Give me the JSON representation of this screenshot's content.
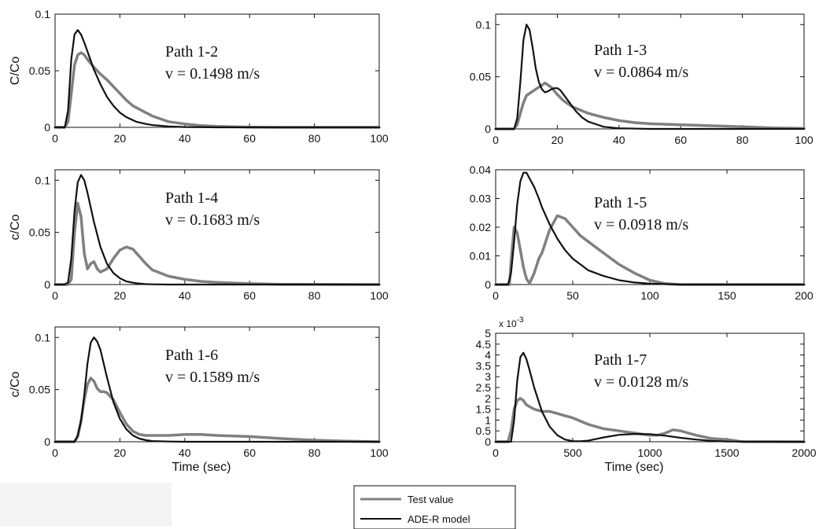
{
  "legend": {
    "items": [
      {
        "label": "Test value",
        "color": "#808080"
      },
      {
        "label": "ADE-R model",
        "color": "#111111"
      }
    ]
  },
  "chart_data": [
    {
      "type": "line",
      "title": "",
      "annotation_path": "Path 1-2",
      "annotation_v": "v = 0.1498 m/s",
      "ylabel": "C/Co",
      "xlabel": "",
      "xlim": [
        0,
        100
      ],
      "ylim": [
        0,
        0.1
      ],
      "xticks": [
        0,
        20,
        40,
        60,
        80,
        100
      ],
      "yticks": [
        0,
        0.05,
        0.1
      ],
      "yticklabels": [
        "0",
        "0.05",
        "0.1"
      ],
      "exponent_label": "",
      "series": [
        {
          "name": "Test value",
          "x": [
            0,
            3,
            4,
            5,
            6,
            7,
            8,
            9,
            10,
            12,
            14,
            16,
            18,
            20,
            22,
            24,
            26,
            28,
            30,
            32,
            35,
            40,
            45,
            50,
            60,
            70,
            80,
            100
          ],
          "y": [
            0,
            0,
            0.005,
            0.03,
            0.055,
            0.064,
            0.066,
            0.064,
            0.06,
            0.053,
            0.047,
            0.042,
            0.036,
            0.03,
            0.024,
            0.019,
            0.016,
            0.013,
            0.01,
            0.008,
            0.005,
            0.003,
            0.0015,
            0.0008,
            0.0002,
            0,
            0,
            0
          ]
        },
        {
          "name": "ADE-R model",
          "x": [
            0,
            3,
            4,
            5,
            6,
            7,
            8,
            9,
            10,
            12,
            14,
            16,
            18,
            20,
            22,
            25,
            28,
            30,
            35,
            40,
            50,
            60,
            100
          ],
          "y": [
            0,
            0,
            0.015,
            0.06,
            0.082,
            0.086,
            0.082,
            0.075,
            0.067,
            0.051,
            0.038,
            0.027,
            0.019,
            0.013,
            0.009,
            0.005,
            0.003,
            0.002,
            0.0008,
            0.0003,
            0,
            0,
            0
          ]
        }
      ]
    },
    {
      "type": "line",
      "title": "",
      "annotation_path": "Path 1-3",
      "annotation_v": "v = 0.0864 m/s",
      "ylabel": "",
      "xlabel": "",
      "xlim": [
        0,
        100
      ],
      "ylim": [
        0,
        0.11
      ],
      "xticks": [
        0,
        20,
        40,
        60,
        80,
        100
      ],
      "yticks": [
        0,
        0.05,
        0.1
      ],
      "yticklabels": [
        "0",
        "0.05",
        "0.1"
      ],
      "exponent_label": "",
      "series": [
        {
          "name": "Test value",
          "x": [
            0,
            6,
            7,
            8,
            9,
            10,
            12,
            14,
            16,
            18,
            20,
            22,
            25,
            30,
            35,
            40,
            45,
            50,
            60,
            70,
            80,
            90,
            100
          ],
          "y": [
            0,
            0,
            0.004,
            0.015,
            0.025,
            0.032,
            0.036,
            0.04,
            0.044,
            0.04,
            0.033,
            0.027,
            0.021,
            0.015,
            0.011,
            0.008,
            0.006,
            0.005,
            0.004,
            0.003,
            0.002,
            0.001,
            0.0005
          ]
        },
        {
          "name": "ADE-R model",
          "x": [
            0,
            6,
            7,
            8,
            9,
            10,
            11,
            12,
            13,
            14,
            15,
            16,
            17,
            18,
            19,
            20,
            21,
            22,
            24,
            26,
            28,
            30,
            35,
            40,
            50,
            100
          ],
          "y": [
            0,
            0,
            0.01,
            0.045,
            0.085,
            0.1,
            0.095,
            0.078,
            0.058,
            0.045,
            0.038,
            0.035,
            0.036,
            0.038,
            0.039,
            0.039,
            0.037,
            0.033,
            0.025,
            0.017,
            0.011,
            0.007,
            0.002,
            0.0006,
            0,
            0
          ]
        }
      ]
    },
    {
      "type": "line",
      "title": "",
      "annotation_path": "Path 1-4",
      "annotation_v": "v = 0.1683 m/s",
      "ylabel": "c/Co",
      "xlabel": "",
      "xlim": [
        0,
        100
      ],
      "ylim": [
        0,
        0.11
      ],
      "xticks": [
        0,
        20,
        40,
        60,
        80,
        100
      ],
      "yticks": [
        0,
        0.05,
        0.1
      ],
      "yticklabels": [
        "0",
        "0.05",
        "0.1"
      ],
      "exponent_label": "",
      "series": [
        {
          "name": "Test value",
          "x": [
            0,
            4,
            5,
            6,
            7,
            8,
            9,
            10,
            11,
            12,
            13,
            14,
            16,
            18,
            20,
            22,
            24,
            26,
            28,
            30,
            35,
            40,
            45,
            50,
            60,
            70,
            100
          ],
          "y": [
            0,
            0,
            0.005,
            0.05,
            0.078,
            0.065,
            0.03,
            0.015,
            0.02,
            0.022,
            0.015,
            0.012,
            0.015,
            0.025,
            0.033,
            0.036,
            0.034,
            0.027,
            0.02,
            0.014,
            0.008,
            0.005,
            0.003,
            0.002,
            0.0008,
            0.0002,
            0
          ]
        },
        {
          "name": "ADE-R model",
          "x": [
            0,
            3,
            4,
            5,
            6,
            7,
            8,
            9,
            10,
            11,
            12,
            14,
            16,
            18,
            20,
            22,
            25,
            28,
            30,
            35,
            40,
            100
          ],
          "y": [
            0,
            0,
            0.002,
            0.025,
            0.07,
            0.098,
            0.105,
            0.1,
            0.088,
            0.074,
            0.06,
            0.036,
            0.02,
            0.011,
            0.006,
            0.003,
            0.0012,
            0.0004,
            0.0002,
            0,
            0,
            0
          ]
        }
      ]
    },
    {
      "type": "line",
      "title": "",
      "annotation_path": "Path 1-5",
      "annotation_v": "v = 0.0918 m/s",
      "ylabel": "",
      "xlabel": "",
      "xlim": [
        0,
        200
      ],
      "ylim": [
        0,
        0.04
      ],
      "xticks": [
        0,
        50,
        100,
        150,
        200
      ],
      "yticks": [
        0,
        0.01,
        0.02,
        0.03,
        0.04
      ],
      "yticklabels": [
        "0",
        "0.01",
        "0.02",
        "0.03",
        "0.04"
      ],
      "exponent_label": "",
      "series": [
        {
          "name": "Test value",
          "x": [
            0,
            9,
            10,
            12,
            14,
            16,
            18,
            20,
            22,
            25,
            28,
            30,
            35,
            40,
            45,
            50,
            55,
            60,
            70,
            80,
            90,
            100,
            110,
            120,
            200
          ],
          "y": [
            0,
            0,
            0.008,
            0.02,
            0.018,
            0.012,
            0.006,
            0.002,
            0.0004,
            0.004,
            0.009,
            0.011,
            0.019,
            0.024,
            0.023,
            0.02,
            0.017,
            0.015,
            0.011,
            0.007,
            0.004,
            0.0015,
            0.0003,
            0,
            0
          ]
        },
        {
          "name": "ADE-R model",
          "x": [
            0,
            8,
            10,
            12,
            14,
            16,
            18,
            20,
            22,
            25,
            28,
            30,
            35,
            40,
            45,
            50,
            55,
            60,
            70,
            80,
            90,
            100,
            120,
            200
          ],
          "y": [
            0,
            0,
            0.004,
            0.015,
            0.028,
            0.036,
            0.039,
            0.039,
            0.037,
            0.034,
            0.03,
            0.027,
            0.021,
            0.016,
            0.012,
            0.009,
            0.007,
            0.005,
            0.003,
            0.0015,
            0.0007,
            0.0003,
            0,
            0
          ]
        }
      ]
    },
    {
      "type": "line",
      "title": "",
      "annotation_path": "Path 1-6",
      "annotation_v": "v = 0.1589 m/s",
      "ylabel": "c/Co",
      "xlabel": "Time (sec)",
      "xlim": [
        0,
        100
      ],
      "ylim": [
        0,
        0.11
      ],
      "xticks": [
        0,
        20,
        40,
        60,
        80,
        100
      ],
      "yticks": [
        0,
        0.05,
        0.1
      ],
      "yticklabels": [
        "0",
        "0.05",
        "0.1"
      ],
      "exponent_label": "",
      "series": [
        {
          "name": "Test value",
          "x": [
            0,
            6,
            7,
            8,
            9,
            10,
            11,
            12,
            13,
            14,
            15,
            16,
            18,
            20,
            22,
            24,
            26,
            28,
            30,
            35,
            40,
            45,
            50,
            60,
            70,
            80,
            90,
            100
          ],
          "y": [
            0,
            0,
            0.005,
            0.02,
            0.04,
            0.055,
            0.061,
            0.058,
            0.051,
            0.048,
            0.048,
            0.047,
            0.04,
            0.028,
            0.017,
            0.01,
            0.007,
            0.006,
            0.006,
            0.006,
            0.007,
            0.007,
            0.006,
            0.005,
            0.003,
            0.0015,
            0.0005,
            0
          ]
        },
        {
          "name": "ADE-R model",
          "x": [
            0,
            6,
            7,
            8,
            9,
            10,
            11,
            12,
            13,
            14,
            15,
            16,
            18,
            20,
            22,
            24,
            26,
            28,
            30,
            35,
            40,
            100
          ],
          "y": [
            0,
            0,
            0.006,
            0.02,
            0.045,
            0.075,
            0.095,
            0.1,
            0.096,
            0.088,
            0.075,
            0.062,
            0.038,
            0.022,
            0.012,
            0.006,
            0.003,
            0.0015,
            0.0007,
            0.0002,
            0,
            0
          ]
        }
      ]
    },
    {
      "type": "line",
      "title": "",
      "annotation_path": "Path 1-7",
      "annotation_v": "v = 0.0128 m/s",
      "ylabel": "",
      "xlabel": "Time (sec)",
      "xlim": [
        0,
        2000
      ],
      "ylim": [
        0,
        0.005
      ],
      "xticks": [
        0,
        500,
        1000,
        1500,
        2000
      ],
      "yticks": [
        0,
        0.0005,
        0.001,
        0.0015,
        0.002,
        0.0025,
        0.003,
        0.0035,
        0.004,
        0.0045,
        0.005
      ],
      "yticklabels": [
        "0",
        "0.5",
        "1",
        "1.5",
        "2",
        "2.5",
        "3",
        "3.5",
        "4",
        "4.5",
        "5"
      ],
      "exponent_label": "x 10",
      "exponent_power": "-3",
      "series": [
        {
          "name": "Test value",
          "x": [
            0,
            80,
            100,
            120,
            140,
            160,
            180,
            200,
            250,
            300,
            350,
            400,
            450,
            500,
            600,
            700,
            800,
            900,
            1000,
            1050,
            1100,
            1150,
            1200,
            1250,
            1300,
            1400,
            1500,
            1600,
            2000
          ],
          "y": [
            0,
            0,
            0.0005,
            0.0015,
            0.0019,
            0.002,
            0.0019,
            0.0017,
            0.0015,
            0.0014,
            0.0014,
            0.0013,
            0.0012,
            0.0011,
            0.0008,
            0.0006,
            0.0005,
            0.0004,
            0.0003,
            0.0003,
            0.0004,
            0.00055,
            0.0005,
            0.0004,
            0.0003,
            0.00015,
            0.0001,
            0,
            0
          ]
        },
        {
          "name": "ADE-R model",
          "x": [
            0,
            100,
            120,
            140,
            160,
            180,
            200,
            220,
            250,
            300,
            350,
            400,
            450,
            500,
            550,
            600,
            700,
            800,
            900,
            1000,
            1100,
            1200,
            1300,
            1400,
            1500,
            2000
          ],
          "y": [
            0,
            0,
            0.001,
            0.0028,
            0.0039,
            0.0041,
            0.0038,
            0.0033,
            0.0025,
            0.0014,
            0.0007,
            0.0003,
            0.0001,
            3e-05,
            2e-05,
            5e-05,
            0.0002,
            0.00032,
            0.00036,
            0.00035,
            0.00028,
            0.00018,
            0.0001,
            4e-05,
            1e-05,
            0
          ]
        }
      ]
    }
  ]
}
